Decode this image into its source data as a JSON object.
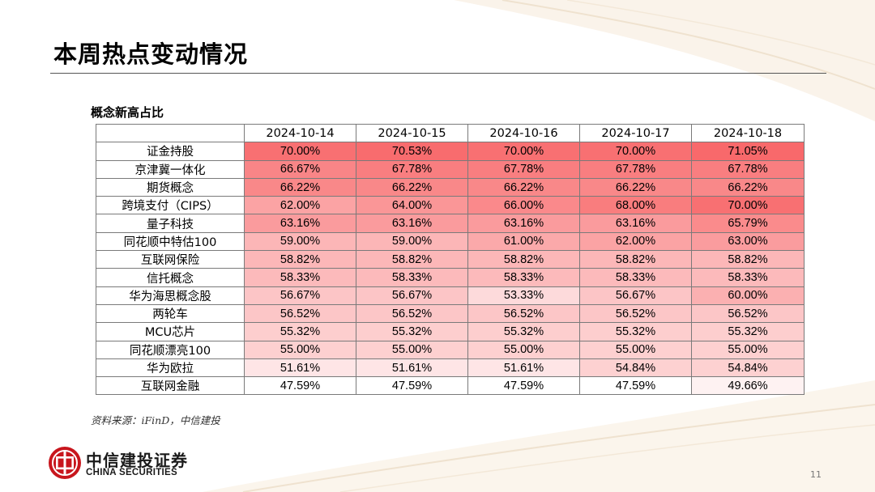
{
  "slide": {
    "title": "本周热点变动情况",
    "subtitle": "概念新高占比",
    "source": "资料来源：iFinD，中信建投",
    "page_number": "11"
  },
  "brand": {
    "name_cn": "中信建投证券",
    "name_en": "CHINA SECURITIES",
    "logo_icon": "china-securities-logo-icon",
    "color": "#c8161d"
  },
  "colors": {
    "heat_low": "#ffffff",
    "heat_high": "#f8696b",
    "accent": "#c8161d"
  },
  "chart_data": {
    "type": "heatmap",
    "title": "概念新高占比",
    "columns": [
      "2024-10-14",
      "2024-10-15",
      "2024-10-16",
      "2024-10-17",
      "2024-10-18"
    ],
    "rows": [
      {
        "name": "证金持股",
        "values": [
          70.0,
          70.53,
          70.0,
          70.0,
          71.05
        ]
      },
      {
        "name": "京津冀一体化",
        "values": [
          66.67,
          67.78,
          67.78,
          67.78,
          67.78
        ]
      },
      {
        "name": "期货概念",
        "values": [
          66.22,
          66.22,
          66.22,
          66.22,
          66.22
        ]
      },
      {
        "name": "跨境支付（CIPS）",
        "values": [
          62.0,
          64.0,
          66.0,
          68.0,
          70.0
        ]
      },
      {
        "name": "量子科技",
        "values": [
          63.16,
          63.16,
          63.16,
          63.16,
          65.79
        ]
      },
      {
        "name": "同花顺中特估100",
        "values": [
          59.0,
          59.0,
          61.0,
          62.0,
          63.0
        ]
      },
      {
        "name": "互联网保险",
        "values": [
          58.82,
          58.82,
          58.82,
          58.82,
          58.82
        ]
      },
      {
        "name": "信托概念",
        "values": [
          58.33,
          58.33,
          58.33,
          58.33,
          58.33
        ]
      },
      {
        "name": "华为海思概念股",
        "values": [
          56.67,
          56.67,
          53.33,
          56.67,
          60.0
        ]
      },
      {
        "name": "两轮车",
        "values": [
          56.52,
          56.52,
          56.52,
          56.52,
          56.52
        ]
      },
      {
        "name": "MCU芯片",
        "values": [
          55.32,
          55.32,
          55.32,
          55.32,
          55.32
        ]
      },
      {
        "name": "同花顺漂亮100",
        "values": [
          55.0,
          55.0,
          55.0,
          55.0,
          55.0
        ]
      },
      {
        "name": "华为欧拉",
        "values": [
          51.61,
          51.61,
          51.61,
          54.84,
          54.84
        ]
      },
      {
        "name": "互联网金融",
        "values": [
          47.59,
          47.59,
          47.59,
          47.59,
          49.66
        ]
      }
    ],
    "value_format": "percent-2dp",
    "value_range": [
      47.59,
      71.05
    ]
  }
}
